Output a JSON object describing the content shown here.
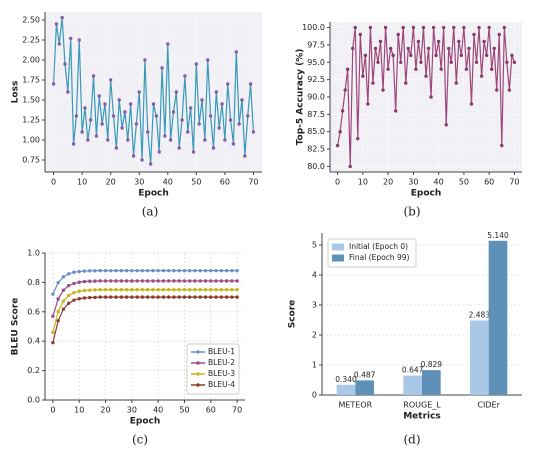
{
  "chart_data": [
    {
      "type": "line",
      "caption": "(a)",
      "x_label": "Epoch",
      "y_label": "Loss",
      "background": "#f0f0f5",
      "grid": true,
      "x": [
        0,
        1,
        2,
        3,
        4,
        5,
        6,
        7,
        8,
        9,
        10,
        11,
        12,
        13,
        14,
        15,
        16,
        17,
        18,
        19,
        20,
        21,
        22,
        23,
        24,
        25,
        26,
        27,
        28,
        29,
        30,
        31,
        32,
        33,
        34,
        35,
        36,
        37,
        38,
        39,
        40,
        41,
        42,
        43,
        44,
        45,
        46,
        47,
        48,
        49,
        50,
        51,
        52,
        53,
        54,
        55,
        56,
        57,
        58,
        59,
        60,
        61,
        62,
        63,
        64,
        65,
        66,
        67,
        68,
        69,
        70
      ],
      "series": [
        {
          "color": "#3a98b8",
          "marker_color": "#8a5aa8",
          "values": [
            1.7,
            2.45,
            2.2,
            2.53,
            1.95,
            1.6,
            2.27,
            0.95,
            1.3,
            2.25,
            1.1,
            1.4,
            1.0,
            1.25,
            1.8,
            1.05,
            1.55,
            1.2,
            1.45,
            1.0,
            1.75,
            1.3,
            0.9,
            1.5,
            1.15,
            1.35,
            1.0,
            1.45,
            0.8,
            1.2,
            1.6,
            0.75,
            2.0,
            1.1,
            0.7,
            1.45,
            1.3,
            0.85,
            1.9,
            1.05,
            2.2,
            1.0,
            1.35,
            1.6,
            0.9,
            1.25,
            1.8,
            1.1,
            1.4,
            0.85,
            1.95,
            1.2,
            1.5,
            1.0,
            2.0,
            1.3,
            0.9,
            1.6,
            1.15,
            1.45,
            1.0,
            1.7,
            1.25,
            0.95,
            2.1,
            1.2,
            1.5,
            0.8,
            1.3,
            1.7,
            1.1
          ]
        }
      ],
      "xlim": [
        -3,
        73
      ],
      "xticks": [
        0,
        10,
        20,
        30,
        40,
        50,
        60,
        70
      ],
      "ylim": [
        0.6,
        2.6
      ],
      "yticks": [
        0.75,
        {
          "value": 1,
          "label": "1.00"
        },
        1.25,
        {
          "value": 1.5,
          "label": "1.50"
        },
        1.75,
        {
          "value": 2,
          "label": "2.00"
        },
        2.25,
        {
          "value": 2.5,
          "label": "2.50"
        }
      ]
    },
    {
      "type": "line",
      "caption": "(b)",
      "x_label": "Epoch",
      "y_label": "Top-5 Accuracy (%)",
      "background": "#f0f0f5",
      "grid": true,
      "x": [
        0,
        1,
        2,
        3,
        4,
        5,
        6,
        7,
        8,
        9,
        10,
        11,
        12,
        13,
        14,
        15,
        16,
        17,
        18,
        19,
        20,
        21,
        22,
        23,
        24,
        25,
        26,
        27,
        28,
        29,
        30,
        31,
        32,
        33,
        34,
        35,
        36,
        37,
        38,
        39,
        40,
        41,
        42,
        43,
        44,
        45,
        46,
        47,
        48,
        49,
        50,
        51,
        52,
        53,
        54,
        55,
        56,
        57,
        58,
        59,
        60,
        61,
        62,
        63,
        64,
        65,
        66,
        67,
        68,
        69,
        70
      ],
      "series": [
        {
          "color": "#a0487c",
          "marker_color": "#8a3a6a",
          "values": [
            83,
            85,
            88,
            91,
            94,
            80,
            97,
            100,
            84,
            99,
            93,
            96,
            89,
            100,
            92,
            97,
            95,
            98,
            91,
            100,
            94,
            97,
            96,
            88,
            99,
            95,
            100,
            92,
            97,
            96,
            100,
            94,
            98,
            95,
            100,
            93,
            97,
            90,
            100,
            96,
            98,
            94,
            100,
            86,
            97,
            95,
            100,
            92,
            98,
            96,
            100,
            94,
            97,
            89,
            99,
            95,
            100,
            93,
            98,
            96,
            100,
            94,
            97,
            91,
            99,
            83,
            100,
            95,
            91,
            96,
            95
          ]
        }
      ],
      "xlim": [
        -3,
        73
      ],
      "xticks": [
        0,
        10,
        20,
        30,
        40,
        50,
        60,
        70
      ],
      "ylim": [
        79.2,
        100.8
      ],
      "yticks": [
        {
          "value": 80,
          "label": "80.0"
        },
        82.5,
        {
          "value": 85,
          "label": "85.0"
        },
        87.5,
        {
          "value": 90,
          "label": "90.0"
        },
        92.5,
        {
          "value": 95,
          "label": "95.0"
        },
        97.5,
        {
          "value": 100,
          "label": "100.0"
        }
      ]
    },
    {
      "type": "line",
      "caption": "(c)",
      "x_label": "Epoch",
      "y_label": "BLEU Score",
      "background": "#ffffff",
      "grid": true,
      "legend": "lower right",
      "x": [
        0,
        2,
        4,
        6,
        8,
        10,
        12,
        14,
        16,
        18,
        20,
        22,
        24,
        26,
        28,
        30,
        32,
        34,
        36,
        38,
        40,
        42,
        44,
        46,
        48,
        50,
        52,
        54,
        56,
        58,
        60,
        62,
        64,
        66,
        68,
        70
      ],
      "series": [
        {
          "name": "BLEU-1",
          "color": "#6a8fc8",
          "values": [
            0.72,
            0.798,
            0.838,
            0.858,
            0.869,
            0.874,
            0.877,
            0.879,
            0.879,
            0.88,
            0.88,
            0.88,
            0.88,
            0.88,
            0.88,
            0.88,
            0.88,
            0.88,
            0.88,
            0.88,
            0.88,
            0.88,
            0.88,
            0.88,
            0.88,
            0.88,
            0.88,
            0.88,
            0.88,
            0.88,
            0.88,
            0.88,
            0.88,
            0.88,
            0.88,
            0.88
          ]
        },
        {
          "name": "BLEU-2",
          "color": "#9a4a8c",
          "values": [
            0.57,
            0.687,
            0.747,
            0.778,
            0.793,
            0.801,
            0.806,
            0.808,
            0.809,
            0.81,
            0.81,
            0.81,
            0.81,
            0.81,
            0.81,
            0.81,
            0.81,
            0.81,
            0.81,
            0.81,
            0.81,
            0.81,
            0.81,
            0.81,
            0.81,
            0.81,
            0.81,
            0.81,
            0.81,
            0.81,
            0.81,
            0.81,
            0.81,
            0.81,
            0.81,
            0.81
          ]
        },
        {
          "name": "BLEU-3",
          "color": "#c8b420",
          "values": [
            0.46,
            0.601,
            0.673,
            0.711,
            0.73,
            0.74,
            0.745,
            0.747,
            0.749,
            0.75,
            0.75,
            0.75,
            0.75,
            0.75,
            0.75,
            0.75,
            0.75,
            0.75,
            0.75,
            0.75,
            0.75,
            0.75,
            0.75,
            0.75,
            0.75,
            0.75,
            0.75,
            0.75,
            0.75,
            0.75,
            0.75,
            0.75,
            0.75,
            0.75,
            0.75,
            0.75
          ]
        },
        {
          "name": "BLEU-4",
          "color": "#8c3c2c",
          "values": [
            0.39,
            0.539,
            0.618,
            0.658,
            0.679,
            0.689,
            0.694,
            0.697,
            0.698,
            0.7,
            0.7,
            0.7,
            0.7,
            0.7,
            0.7,
            0.7,
            0.7,
            0.7,
            0.7,
            0.7,
            0.7,
            0.7,
            0.7,
            0.7,
            0.7,
            0.7,
            0.7,
            0.7,
            0.7,
            0.7,
            0.7,
            0.7,
            0.7,
            0.7,
            0.7,
            0.7
          ]
        }
      ],
      "xlim": [
        -3,
        73
      ],
      "xticks": [
        0,
        10,
        20,
        30,
        40,
        50,
        60,
        70
      ],
      "ylim": [
        0,
        1
      ],
      "yticks": [
        {
          "value": 0,
          "label": "0.0"
        },
        0.2,
        0.4,
        0.6,
        0.8,
        {
          "value": 1,
          "label": "1.0"
        }
      ]
    },
    {
      "type": "bar",
      "caption": "(d)",
      "x_label": "Metrics",
      "y_label": "Score",
      "background": "#ffffff",
      "grid": true,
      "legend": "upper left",
      "categories": [
        "METEOR",
        "ROUGE_L",
        "CIDEr"
      ],
      "series": [
        {
          "name": "Initial (Epoch 0)",
          "color": "#a9c8e8",
          "values": [
            0.34,
            0.647,
            2.483
          ],
          "value_labels": [
            "0.340",
            "0.647",
            "2.483"
          ]
        },
        {
          "name": "Final (Epoch 99)",
          "color": "#5e90b8",
          "values": [
            0.487,
            0.829,
            5.14
          ],
          "value_labels": [
            "0.487",
            "0.829",
            "5.140"
          ]
        }
      ],
      "ylim": [
        0,
        5.4
      ],
      "yticks": [
        0,
        1,
        2,
        3,
        4,
        5
      ]
    }
  ]
}
